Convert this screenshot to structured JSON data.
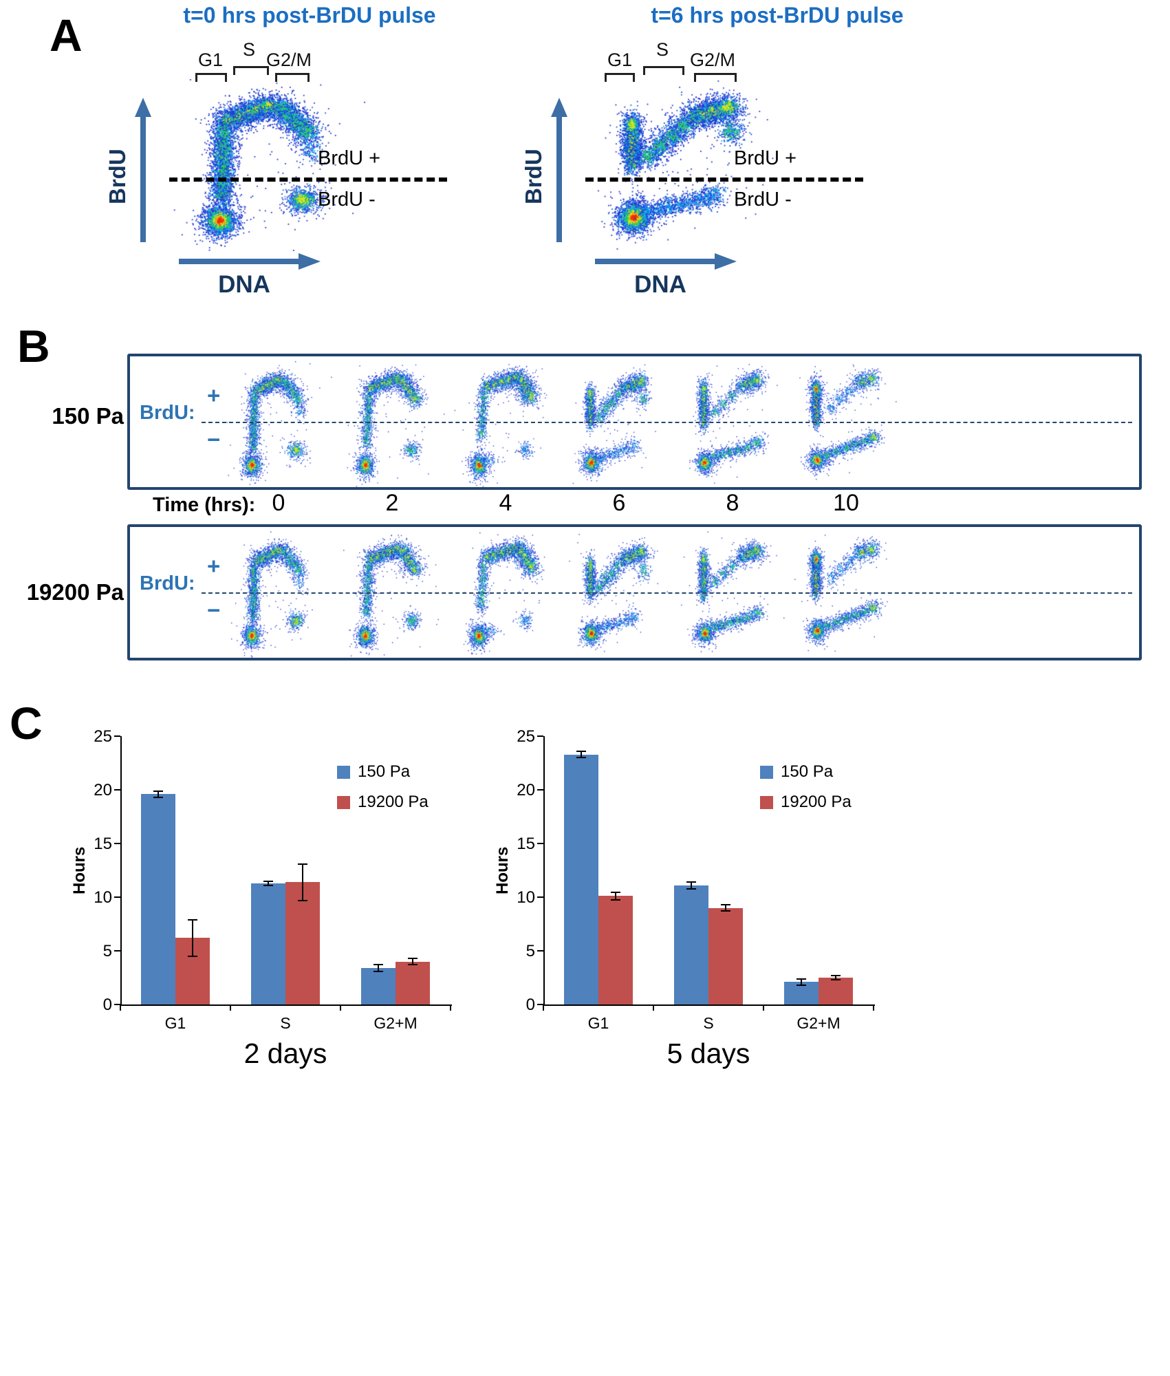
{
  "colors": {
    "title_blue": "#1b6ec2",
    "navy": "#16365c",
    "arrow_blue": "#3d6ea5",
    "box_border": "#24456e",
    "bar_blue": "#4f81bd",
    "bar_red": "#c0504d"
  },
  "panelA": {
    "label": "A",
    "plots": [
      {
        "title": "t=0 hrs post-BrDU pulse",
        "phases": [
          "G1",
          "S",
          "G2/M"
        ],
        "ylabel": "BrdU",
        "xlabel": "DNA",
        "gate_pos": "BrdU +",
        "gate_neg": "BrdU -"
      },
      {
        "title": "t=6 hrs post-BrDU pulse",
        "phases": [
          "G1",
          "S",
          "G2/M"
        ],
        "ylabel": "BrdU",
        "xlabel": "DNA",
        "gate_pos": "BrdU +",
        "gate_neg": "BrdU -"
      }
    ]
  },
  "panelB": {
    "label": "B",
    "time_axis_label": "Time (hrs):",
    "times": [
      "0",
      "2",
      "4",
      "6",
      "8",
      "10"
    ],
    "rows": [
      {
        "stiffness": "150 Pa",
        "marker_label": "BrdU:",
        "plus": "+",
        "minus": "−"
      },
      {
        "stiffness": "19200 Pa",
        "marker_label": "BrdU:",
        "plus": "+",
        "minus": "−"
      }
    ]
  },
  "panelC": {
    "label": "C"
  },
  "chart_data": [
    {
      "type": "bar",
      "title": "2 days",
      "ylabel": "Hours",
      "ylim": [
        0,
        25
      ],
      "yticks": [
        0,
        5,
        10,
        15,
        20,
        25
      ],
      "categories": [
        "G1",
        "S",
        "G2+M"
      ],
      "series": [
        {
          "name": "150 Pa",
          "color": "#4f81bd",
          "values": [
            19.6,
            11.3,
            3.4
          ],
          "errors": [
            0.3,
            0.2,
            0.3
          ]
        },
        {
          "name": "19200 Pa",
          "color": "#c0504d",
          "values": [
            6.2,
            11.4,
            4.0
          ],
          "errors": [
            1.7,
            1.7,
            0.3
          ]
        }
      ],
      "legend_position": "top-right",
      "grid": false
    },
    {
      "type": "bar",
      "title": "5 days",
      "ylabel": "Hours",
      "ylim": [
        0,
        25
      ],
      "yticks": [
        0,
        5,
        10,
        15,
        20,
        25
      ],
      "categories": [
        "G1",
        "S",
        "G2+M"
      ],
      "series": [
        {
          "name": "150 Pa",
          "color": "#4f81bd",
          "values": [
            23.3,
            11.1,
            2.1
          ],
          "errors": [
            0.3,
            0.3,
            0.3
          ]
        },
        {
          "name": "19200 Pa",
          "color": "#c0504d",
          "values": [
            10.1,
            9.0,
            2.5
          ],
          "errors": [
            0.35,
            0.3,
            0.2
          ]
        }
      ],
      "legend_position": "top-right",
      "grid": false
    }
  ]
}
